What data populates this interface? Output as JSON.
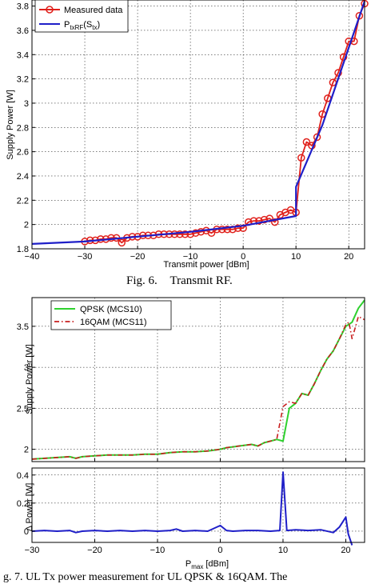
{
  "fig6": {
    "caption_prefix": "Fig. 6.",
    "caption_title": "Transmit RF."
  },
  "fig7": {
    "caption_partial": "g. 7.   UL Tx power measurement for UL QPSK & 16QAM. The"
  },
  "colors": {
    "red": "#e0201b",
    "blue": "#1f1fc8",
    "green": "#2fd12f",
    "darkred": "#c81e1e"
  },
  "chart_data": [
    {
      "type": "line",
      "xlabel": "Transmit power [dBm]",
      "ylabel": "Supply Power [W]",
      "xlim": [
        -40,
        23
      ],
      "ylim": [
        1.8,
        3.85
      ],
      "xticks": [
        -40,
        -30,
        -20,
        -10,
        0,
        10,
        20
      ],
      "xtick_labels": [
        "−40",
        "−30",
        "−20",
        "−10",
        "0",
        "10",
        "20"
      ],
      "yticks": [
        1.8,
        2,
        2.2,
        2.4,
        2.6,
        2.8,
        3,
        3.2,
        3.4,
        3.6,
        3.8
      ],
      "ytick_labels": [
        "1.8",
        "2",
        "2.2",
        "2.4",
        "2.6",
        "2.8",
        "3",
        "3.2",
        "3.4",
        "3.6",
        "3.8"
      ],
      "grid": true,
      "legend_position": "top-left",
      "series": [
        {
          "name": "Measured data",
          "style": "line-circle-markers",
          "x": [
            -30,
            -29,
            -28,
            -27,
            -26,
            -25,
            -24,
            -23,
            -22,
            -21,
            -20,
            -19,
            -18,
            -17,
            -16,
            -15,
            -14,
            -13,
            -12,
            -11,
            -10,
            -9,
            -8,
            -7,
            -6,
            -5,
            -4,
            -3,
            -2,
            -1,
            0,
            1,
            2,
            3,
            4,
            5,
            6,
            7,
            8,
            9,
            10,
            11,
            12,
            13,
            14,
            15,
            16,
            17,
            18,
            19,
            20,
            21,
            22,
            23
          ],
          "y": [
            1.86,
            1.87,
            1.87,
            1.88,
            1.88,
            1.89,
            1.89,
            1.85,
            1.89,
            1.9,
            1.9,
            1.91,
            1.91,
            1.91,
            1.92,
            1.92,
            1.92,
            1.92,
            1.92,
            1.92,
            1.92,
            1.93,
            1.94,
            1.95,
            1.93,
            1.96,
            1.96,
            1.96,
            1.96,
            1.97,
            1.97,
            2.02,
            2.03,
            2.03,
            2.04,
            2.05,
            2.02,
            2.08,
            2.1,
            2.12,
            2.1,
            2.55,
            2.68,
            2.65,
            2.72,
            2.91,
            3.04,
            3.17,
            3.25,
            3.38,
            3.51,
            3.51,
            3.72,
            3.82
          ]
        },
        {
          "name": "P_txRF(S_tx)",
          "style": "line",
          "x": [
            -40,
            -30,
            -20,
            -10,
            0,
            10,
            10,
            15,
            23
          ],
          "y": [
            1.84,
            1.86,
            1.9,
            1.94,
            1.99,
            2.07,
            2.31,
            2.82,
            3.84
          ]
        }
      ]
    },
    {
      "type": "line",
      "xlabel_base": "P",
      "xlabel_sub": "max",
      "xlabel_unit": "[dBm]",
      "ylabel": "Supply Power [W]",
      "xlim": [
        -30,
        23
      ],
      "ylim": [
        1.85,
        3.85
      ],
      "yticks": [
        2,
        2.5,
        3,
        3.5
      ],
      "ytick_labels": [
        "2",
        "2.5",
        "3",
        "3.5"
      ],
      "grid": true,
      "legend_position": "top-left",
      "series": [
        {
          "name": "QPSK (MCS10)",
          "style": "solid",
          "x": [
            -30,
            -28,
            -26,
            -24,
            -23,
            -22,
            -20,
            -18,
            -16,
            -14,
            -12,
            -10,
            -8,
            -6,
            -4,
            -2,
            0,
            1,
            2,
            3,
            4,
            5,
            6,
            7,
            8,
            9,
            10,
            11,
            12,
            13,
            14,
            15,
            16,
            17,
            18,
            19,
            20,
            21,
            22,
            23
          ],
          "y": [
            1.88,
            1.89,
            1.9,
            1.91,
            1.89,
            1.91,
            1.92,
            1.93,
            1.93,
            1.93,
            1.94,
            1.94,
            1.96,
            1.97,
            1.97,
            1.98,
            2.0,
            2.02,
            2.03,
            2.04,
            2.05,
            2.06,
            2.04,
            2.08,
            2.1,
            2.12,
            2.1,
            2.5,
            2.56,
            2.68,
            2.66,
            2.8,
            2.96,
            3.1,
            3.2,
            3.35,
            3.5,
            3.55,
            3.72,
            3.82
          ]
        },
        {
          "name": "16QAM (MCS11)",
          "style": "dashdot",
          "x": [
            -30,
            -28,
            -26,
            -24,
            -23,
            -22,
            -20,
            -18,
            -16,
            -14,
            -12,
            -10,
            -8,
            -6,
            -4,
            -2,
            0,
            1,
            2,
            3,
            4,
            5,
            6,
            7,
            8,
            9,
            10,
            11,
            12,
            13,
            14,
            15,
            16,
            17,
            18,
            19,
            20,
            20.5,
            21,
            21.5,
            22,
            23
          ],
          "y": [
            1.88,
            1.89,
            1.9,
            1.91,
            1.89,
            1.91,
            1.92,
            1.93,
            1.93,
            1.93,
            1.94,
            1.94,
            1.96,
            1.97,
            1.97,
            1.98,
            2.0,
            2.02,
            2.03,
            2.04,
            2.05,
            2.06,
            2.04,
            2.08,
            2.1,
            2.12,
            2.52,
            2.58,
            2.56,
            2.68,
            2.66,
            2.8,
            2.96,
            3.1,
            3.2,
            3.35,
            3.52,
            3.55,
            3.35,
            3.48,
            3.62,
            3.58
          ]
        }
      ]
    },
    {
      "type": "line",
      "xlabel_base": "P",
      "xlabel_sub": "max",
      "xlabel_unit": "[dBm]",
      "ylabel": "Δ Power [W]",
      "xlim": [
        -30,
        23
      ],
      "ylim": [
        -0.08,
        0.45
      ],
      "xticks": [
        -30,
        -20,
        -10,
        0,
        10,
        20
      ],
      "xtick_labels": [
        "−30",
        "−20",
        "−10",
        "0",
        "10",
        "20"
      ],
      "yticks": [
        0,
        0.2,
        0.4
      ],
      "ytick_labels": [
        "0",
        "0.2",
        "0.4"
      ],
      "grid": true,
      "series": [
        {
          "style": "solid",
          "x": [
            -30,
            -28,
            -26,
            -24,
            -23,
            -22,
            -20,
            -18,
            -16,
            -14,
            -12,
            -10,
            -8,
            -7,
            -6,
            -4,
            -2,
            0,
            1,
            2,
            4,
            6,
            8,
            9.5,
            10,
            10.6,
            12,
            14,
            16,
            18,
            19,
            20,
            20.4,
            21
          ],
          "y": [
            0,
            0.005,
            0,
            0.005,
            -0.01,
            0,
            0.005,
            0,
            0.005,
            0,
            0.005,
            0,
            0.005,
            0.015,
            0,
            0.005,
            0,
            0.04,
            0.005,
            0,
            0.005,
            0.005,
            0,
            0.005,
            0.42,
            0.005,
            0.01,
            0.005,
            0.01,
            -0.01,
            0.03,
            0.1,
            -0.02,
            -0.1
          ]
        }
      ]
    }
  ]
}
